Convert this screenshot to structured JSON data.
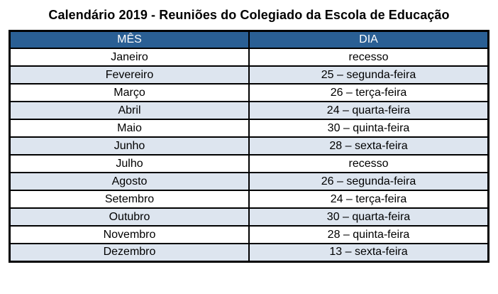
{
  "title": "Calendário 2019 - Reuniões do Colegiado da Escola de Educação",
  "colors": {
    "header_bg": "#2A5F94",
    "header_text": "#FFFFFF",
    "alt_row_bg": "#DDE5EF",
    "border": "#000000"
  },
  "table": {
    "columns": [
      "MÊS",
      "DIA"
    ],
    "rows": [
      {
        "mes": "Janeiro",
        "dia": "recesso"
      },
      {
        "mes": "Fevereiro",
        "dia": "25 – segunda-feira"
      },
      {
        "mes": "Março",
        "dia": "26 – terça-feira"
      },
      {
        "mes": "Abril",
        "dia": "24 – quarta-feira"
      },
      {
        "mes": "Maio",
        "dia": "30 – quinta-feira"
      },
      {
        "mes": "Junho",
        "dia": "28 – sexta-feira"
      },
      {
        "mes": "Julho",
        "dia": "recesso"
      },
      {
        "mes": "Agosto",
        "dia": "26 – segunda-feira"
      },
      {
        "mes": "Setembro",
        "dia": "24 – terça-feira"
      },
      {
        "mes": "Outubro",
        "dia": "30 – quarta-feira"
      },
      {
        "mes": "Novembro",
        "dia": "28 – quinta-feira"
      },
      {
        "mes": "Dezembro",
        "dia": "13 – sexta-feira"
      }
    ]
  }
}
